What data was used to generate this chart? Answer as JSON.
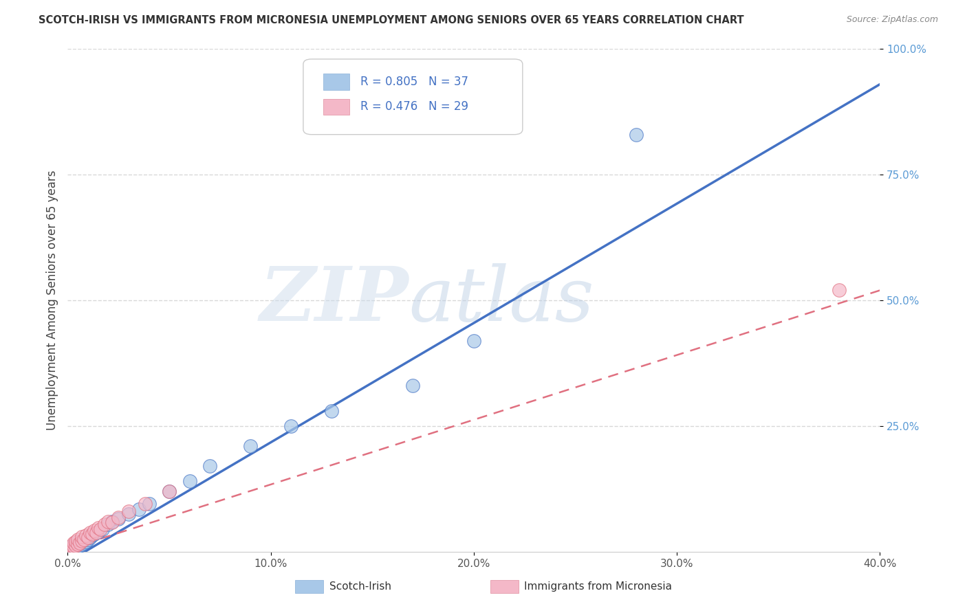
{
  "title": "SCOTCH-IRISH VS IMMIGRANTS FROM MICRONESIA UNEMPLOYMENT AMONG SENIORS OVER 65 YEARS CORRELATION CHART",
  "source": "Source: ZipAtlas.com",
  "ylabel": "Unemployment Among Seniors over 65 years",
  "xmin": 0.0,
  "xmax": 0.4,
  "ymin": 0.0,
  "ymax": 1.0,
  "xtick_labels": [
    "0.0%",
    "10.0%",
    "20.0%",
    "30.0%",
    "40.0%"
  ],
  "xtick_values": [
    0.0,
    0.1,
    0.2,
    0.3,
    0.4
  ],
  "ytick_labels": [
    "100.0%",
    "75.0%",
    "50.0%",
    "25.0%"
  ],
  "ytick_values": [
    1.0,
    0.75,
    0.5,
    0.25
  ],
  "series1_label": "Scotch-Irish",
  "series1_color": "#a8c8e8",
  "series1_line_color": "#4472c4",
  "series1_R": "0.805",
  "series1_N": "37",
  "series2_label": "Immigrants from Micronesia",
  "series2_color": "#f4b8c8",
  "series2_line_color": "#e07080",
  "series2_R": "0.476",
  "series2_N": "29",
  "legend_color": "#4472c4",
  "background_color": "#ffffff",
  "grid_color": "#d8d8d8",
  "title_color": "#333333",
  "source_color": "#888888",
  "ylabel_color": "#444444",
  "series1_x": [
    0.001,
    0.002,
    0.003,
    0.003,
    0.004,
    0.004,
    0.005,
    0.005,
    0.006,
    0.006,
    0.007,
    0.007,
    0.008,
    0.008,
    0.009,
    0.01,
    0.01,
    0.011,
    0.012,
    0.013,
    0.015,
    0.017,
    0.02,
    0.022,
    0.025,
    0.03,
    0.035,
    0.04,
    0.05,
    0.06,
    0.07,
    0.09,
    0.11,
    0.13,
    0.17,
    0.2,
    0.28
  ],
  "series1_y": [
    0.005,
    0.01,
    0.008,
    0.012,
    0.008,
    0.015,
    0.01,
    0.02,
    0.012,
    0.018,
    0.015,
    0.022,
    0.018,
    0.025,
    0.02,
    0.025,
    0.03,
    0.028,
    0.032,
    0.035,
    0.04,
    0.045,
    0.055,
    0.06,
    0.065,
    0.075,
    0.085,
    0.095,
    0.12,
    0.14,
    0.17,
    0.21,
    0.25,
    0.28,
    0.33,
    0.42,
    0.83
  ],
  "series2_x": [
    0.001,
    0.002,
    0.002,
    0.003,
    0.003,
    0.004,
    0.004,
    0.005,
    0.005,
    0.006,
    0.007,
    0.007,
    0.008,
    0.009,
    0.01,
    0.011,
    0.012,
    0.013,
    0.014,
    0.015,
    0.016,
    0.018,
    0.02,
    0.022,
    0.025,
    0.03,
    0.038,
    0.05,
    0.38
  ],
  "series2_y": [
    0.005,
    0.008,
    0.012,
    0.01,
    0.018,
    0.012,
    0.02,
    0.015,
    0.025,
    0.018,
    0.022,
    0.03,
    0.025,
    0.032,
    0.028,
    0.038,
    0.035,
    0.042,
    0.038,
    0.048,
    0.045,
    0.055,
    0.06,
    0.058,
    0.068,
    0.08,
    0.095,
    0.12,
    0.52
  ],
  "line1_x0": 0.0,
  "line1_y0": -0.02,
  "line1_x1": 0.4,
  "line1_y1": 0.93,
  "line2_x0": 0.0,
  "line2_y0": 0.005,
  "line2_x1": 0.4,
  "line2_y1": 0.52
}
